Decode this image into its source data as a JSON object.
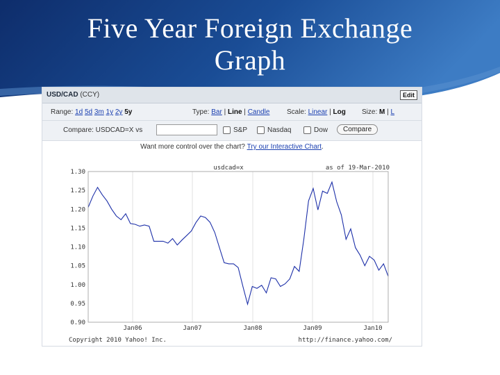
{
  "slide": {
    "title_line1": "Five Year Foreign Exchange",
    "title_line2": "Graph"
  },
  "header": {
    "symbol": "USD/CAD",
    "currency": "(CCY)",
    "edit_label": "Edit"
  },
  "controls": {
    "range_label": "Range:",
    "ranges": [
      "1d",
      "5d",
      "3m",
      "1y",
      "2y"
    ],
    "range_selected": "5y",
    "type_label": "Type:",
    "type_bar": "Bar",
    "type_line": "Line",
    "type_candle": "Candle",
    "scale_label": "Scale:",
    "scale_linear": "Linear",
    "scale_log": "Log",
    "size_label": "Size:",
    "size_m": "M",
    "size_l": "L",
    "compare_label": "Compare: USDCAD=X vs",
    "compare_value": "",
    "checkbox_sp": "S&P",
    "checkbox_nasdaq": "Nasdaq",
    "checkbox_dow": "Dow",
    "compare_button": "Compare",
    "interactive_text": "Want more control over the chart?",
    "interactive_link": "Try our Interactive Chart",
    "interactive_end": "."
  },
  "chart_data": {
    "type": "line",
    "title": "usdcad=x",
    "date_note": "as of 19-Mar-2010",
    "y_ticks": [
      "1.30",
      "1.25",
      "1.20",
      "1.15",
      "1.10",
      "1.05",
      "1.00",
      "0.95",
      "0.90"
    ],
    "ylim": [
      0.9,
      1.3
    ],
    "x_ticks": [
      "Jan06",
      "Jan07",
      "Jan08",
      "Jan09",
      "Jan10"
    ],
    "footer_left": "Copyright 2010 Yahoo! Inc.",
    "footer_right": "http://finance.yahoo.com/",
    "line_color": "#1c2fa8",
    "values": [
      1.205,
      1.235,
      1.258,
      1.238,
      1.222,
      1.2,
      1.182,
      1.172,
      1.188,
      1.162,
      1.16,
      1.155,
      1.158,
      1.155,
      1.115,
      1.115,
      1.115,
      1.11,
      1.122,
      1.105,
      1.118,
      1.13,
      1.142,
      1.165,
      1.182,
      1.178,
      1.165,
      1.138,
      1.098,
      1.058,
      1.055,
      1.055,
      1.045,
      0.995,
      0.948,
      0.995,
      0.99,
      0.998,
      0.978,
      1.018,
      1.015,
      0.995,
      1.002,
      1.015,
      1.048,
      1.035,
      1.12,
      1.222,
      1.255,
      1.198,
      1.248,
      1.242,
      1.272,
      1.22,
      1.185,
      1.12,
      1.148,
      1.098,
      1.078,
      1.05,
      1.075,
      1.065,
      1.038,
      1.055,
      1.022
    ]
  }
}
